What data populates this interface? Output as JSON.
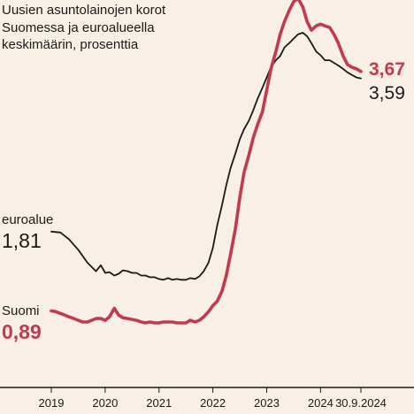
{
  "title_lines": [
    "Uusien asuntolainojen korot",
    "Suomessa ja euroalueella",
    "keskimäärin, prosenttia"
  ],
  "colors": {
    "suomi": "#c23a4b",
    "euroalue": "#1a1a1a",
    "background": "#f8efe6",
    "axis": "#1a1a1a"
  },
  "labels": {
    "euroalue_name": "euroalue",
    "euroalue_start": "1,81",
    "suomi_name": "Suomi",
    "suomi_start": "0,89",
    "suomi_end": "3,67",
    "euroalue_end": "3,59"
  },
  "chart_data": {
    "type": "line",
    "title": "Uusien asuntolainojen korot Suomessa ja euroalueella keskimäärin, prosenttia",
    "x_tick_labels": [
      "2019",
      "2020",
      "2021",
      "2022",
      "2023",
      "2024",
      "30.9.2024"
    ],
    "x_ticks": [
      2019.0,
      2020.0,
      2021.0,
      2022.0,
      2023.0,
      2024.0,
      2024.75
    ],
    "xlim": [
      2019.0,
      2024.75
    ],
    "ylim": [
      0.0,
      4.5
    ],
    "grid": false,
    "legend": "direct labels",
    "series": [
      {
        "name": "euroalue",
        "x": [
          2019.0,
          2019.17,
          2019.33,
          2019.5,
          2019.67,
          2019.83,
          2019.92,
          2020.0,
          2020.08,
          2020.17,
          2020.25,
          2020.33,
          2020.42,
          2020.5,
          2020.58,
          2020.67,
          2020.75,
          2020.83,
          2020.92,
          2021.0,
          2021.08,
          2021.17,
          2021.25,
          2021.33,
          2021.42,
          2021.5,
          2021.58,
          2021.67,
          2021.75,
          2021.83,
          2021.92,
          2022.0,
          2022.08,
          2022.17,
          2022.25,
          2022.33,
          2022.42,
          2022.5,
          2022.58,
          2022.67,
          2022.75,
          2022.83,
          2022.92,
          2023.0,
          2023.08,
          2023.17,
          2023.25,
          2023.33,
          2023.42,
          2023.5,
          2023.58,
          2023.67,
          2023.75,
          2023.83,
          2023.92,
          2024.0,
          2024.08,
          2024.17,
          2024.25,
          2024.33,
          2024.42,
          2024.5,
          2024.58,
          2024.67,
          2024.75
        ],
        "values": [
          1.81,
          1.8,
          1.72,
          1.6,
          1.45,
          1.35,
          1.42,
          1.33,
          1.34,
          1.3,
          1.32,
          1.36,
          1.35,
          1.33,
          1.33,
          1.3,
          1.3,
          1.28,
          1.28,
          1.26,
          1.25,
          1.27,
          1.25,
          1.26,
          1.25,
          1.25,
          1.27,
          1.26,
          1.29,
          1.35,
          1.45,
          1.62,
          1.88,
          2.12,
          2.35,
          2.55,
          2.72,
          2.88,
          3.0,
          3.1,
          3.22,
          3.35,
          3.48,
          3.6,
          3.72,
          3.8,
          3.85,
          3.95,
          4.0,
          4.05,
          4.1,
          4.12,
          4.08,
          4.0,
          3.9,
          3.86,
          3.8,
          3.8,
          3.77,
          3.74,
          3.7,
          3.66,
          3.63,
          3.6,
          3.59
        ]
      },
      {
        "name": "Suomi",
        "x": [
          2019.0,
          2019.08,
          2019.17,
          2019.25,
          2019.33,
          2019.42,
          2019.5,
          2019.58,
          2019.67,
          2019.75,
          2019.83,
          2019.92,
          2020.0,
          2020.08,
          2020.17,
          2020.25,
          2020.33,
          2020.42,
          2020.5,
          2020.58,
          2020.67,
          2020.75,
          2020.83,
          2020.92,
          2021.0,
          2021.08,
          2021.17,
          2021.25,
          2021.33,
          2021.42,
          2021.5,
          2021.58,
          2021.67,
          2021.75,
          2021.83,
          2021.92,
          2022.0,
          2022.08,
          2022.17,
          2022.25,
          2022.33,
          2022.42,
          2022.5,
          2022.58,
          2022.67,
          2022.75,
          2022.83,
          2022.92,
          2023.0,
          2023.08,
          2023.17,
          2023.25,
          2023.33,
          2023.42,
          2023.5,
          2023.58,
          2023.67,
          2023.75,
          2023.83,
          2023.92,
          2024.0,
          2024.08,
          2024.17,
          2024.25,
          2024.33,
          2024.42,
          2024.5,
          2024.58,
          2024.67,
          2024.75
        ],
        "values": [
          0.89,
          0.88,
          0.86,
          0.84,
          0.82,
          0.8,
          0.78,
          0.76,
          0.76,
          0.78,
          0.8,
          0.8,
          0.78,
          0.82,
          0.92,
          0.84,
          0.81,
          0.8,
          0.79,
          0.78,
          0.76,
          0.75,
          0.76,
          0.75,
          0.75,
          0.76,
          0.76,
          0.76,
          0.75,
          0.75,
          0.75,
          0.78,
          0.76,
          0.78,
          0.82,
          0.88,
          0.95,
          1.0,
          1.12,
          1.3,
          1.55,
          1.85,
          2.2,
          2.5,
          2.7,
          2.9,
          3.05,
          3.2,
          3.45,
          3.7,
          3.9,
          4.1,
          4.25,
          4.38,
          4.48,
          4.52,
          4.42,
          4.25,
          4.15,
          4.2,
          4.22,
          4.2,
          4.18,
          4.1,
          4.0,
          3.85,
          3.75,
          3.72,
          3.7,
          3.67
        ]
      }
    ]
  }
}
